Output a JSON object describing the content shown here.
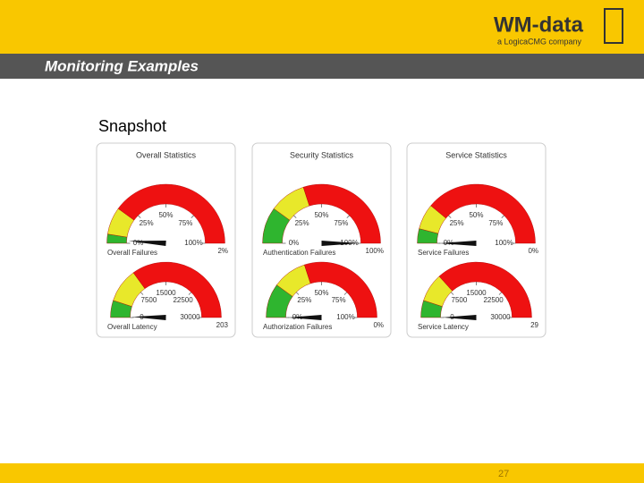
{
  "header": {
    "logo": "WM-data",
    "tagline": "a LogicaCMG company",
    "title": "Monitoring Examples"
  },
  "subtitle": "Snapshot",
  "footer": {
    "page": "27"
  },
  "panels": [
    {
      "title": "Overall Statistics",
      "gauges": [
        {
          "label": "Overall Failures",
          "value": 2,
          "value_label": "2%",
          "range": [
            0,
            100
          ],
          "ticks": [
            {
              "value": 0,
              "label": "0%"
            },
            {
              "value": 25,
              "label": "25%"
            },
            {
              "value": 50,
              "label": "50%"
            },
            {
              "value": 75,
              "label": "75%"
            },
            {
              "value": 100,
              "label": "100%"
            }
          ],
          "zones": [
            {
              "from": 0,
              "to": 5,
              "color": "#2fb52f"
            },
            {
              "from": 5,
              "to": 20,
              "color": "#e8e82a"
            },
            {
              "from": 20,
              "to": 100,
              "color": "#ee1111"
            }
          ]
        },
        {
          "label": "Overall Latency",
          "value": 203,
          "value_label": "203",
          "range": [
            0,
            30000
          ],
          "ticks": [
            0,
            7500,
            15000,
            22500,
            30000
          ],
          "zones": [
            {
              "from": 0,
              "to": 3000,
              "color": "#2fb52f"
            },
            {
              "from": 3000,
              "to": 9000,
              "color": "#e8e82a"
            },
            {
              "from": 9000,
              "to": 30000,
              "color": "#ee1111"
            }
          ]
        }
      ]
    },
    {
      "title": "Security Statistics",
      "gauges": [
        {
          "label": "Authentication Failures",
          "value": 100,
          "value_label": "100%",
          "range": [
            0,
            100
          ],
          "ticks": [
            {
              "value": 0,
              "label": "0%"
            },
            {
              "value": 25,
              "label": "25%"
            },
            {
              "value": 50,
              "label": "50%"
            },
            {
              "value": 75,
              "label": "75%"
            },
            {
              "value": 100,
              "label": "100%"
            }
          ],
          "zones": [
            {
              "from": 0,
              "to": 20,
              "color": "#2fb52f"
            },
            {
              "from": 20,
              "to": 40,
              "color": "#e8e82a"
            },
            {
              "from": 40,
              "to": 100,
              "color": "#ee1111"
            }
          ]
        },
        {
          "label": "Authorization Failures",
          "value": 0,
          "value_label": "0%",
          "range": [
            0,
            100
          ],
          "ticks": [
            {
              "value": 0,
              "label": "0%"
            },
            {
              "value": 25,
              "label": "25%"
            },
            {
              "value": 50,
              "label": "50%"
            },
            {
              "value": 75,
              "label": "75%"
            },
            {
              "value": 100,
              "label": "100%"
            }
          ],
          "zones": [
            {
              "from": 0,
              "to": 20,
              "color": "#2fb52f"
            },
            {
              "from": 20,
              "to": 40,
              "color": "#e8e82a"
            },
            {
              "from": 40,
              "to": 100,
              "color": "#ee1111"
            }
          ]
        }
      ]
    },
    {
      "title": "Service Statistics",
      "gauges": [
        {
          "label": "Service Failures",
          "value": 0,
          "value_label": "0%",
          "range": [
            0,
            100
          ],
          "ticks": [
            {
              "value": 0,
              "label": "0%"
            },
            {
              "value": 25,
              "label": "25%"
            },
            {
              "value": 50,
              "label": "50%"
            },
            {
              "value": 75,
              "label": "75%"
            },
            {
              "value": 100,
              "label": "100%"
            }
          ],
          "zones": [
            {
              "from": 0,
              "to": 8,
              "color": "#2fb52f"
            },
            {
              "from": 8,
              "to": 22,
              "color": "#e8e82a"
            },
            {
              "from": 22,
              "to": 100,
              "color": "#ee1111"
            }
          ]
        },
        {
          "label": "Service Latency",
          "value": 29,
          "value_label": "29",
          "range": [
            0,
            30000
          ],
          "ticks": [
            0,
            7500,
            15000,
            22500,
            30000
          ],
          "zones": [
            {
              "from": 0,
              "to": 3000,
              "color": "#2fb52f"
            },
            {
              "from": 3000,
              "to": 8000,
              "color": "#e8e82a"
            },
            {
              "from": 8000,
              "to": 30000,
              "color": "#ee1111"
            }
          ]
        }
      ]
    }
  ]
}
